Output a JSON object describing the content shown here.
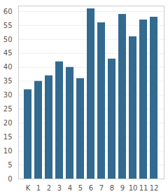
{
  "chart_data": {
    "type": "bar",
    "categories": [
      "K",
      "1",
      "2",
      "3",
      "4",
      "5",
      "6",
      "7",
      "8",
      "9",
      "10",
      "11",
      "12"
    ],
    "values": [
      32,
      35,
      37,
      42,
      40,
      36,
      61,
      56,
      43,
      59,
      51,
      57,
      58
    ],
    "color": "#336a90",
    "ylim": [
      0,
      62
    ],
    "yticks": [
      0,
      5,
      10,
      15,
      20,
      25,
      30,
      35,
      40,
      45,
      50,
      55,
      60
    ],
    "grid": true
  }
}
